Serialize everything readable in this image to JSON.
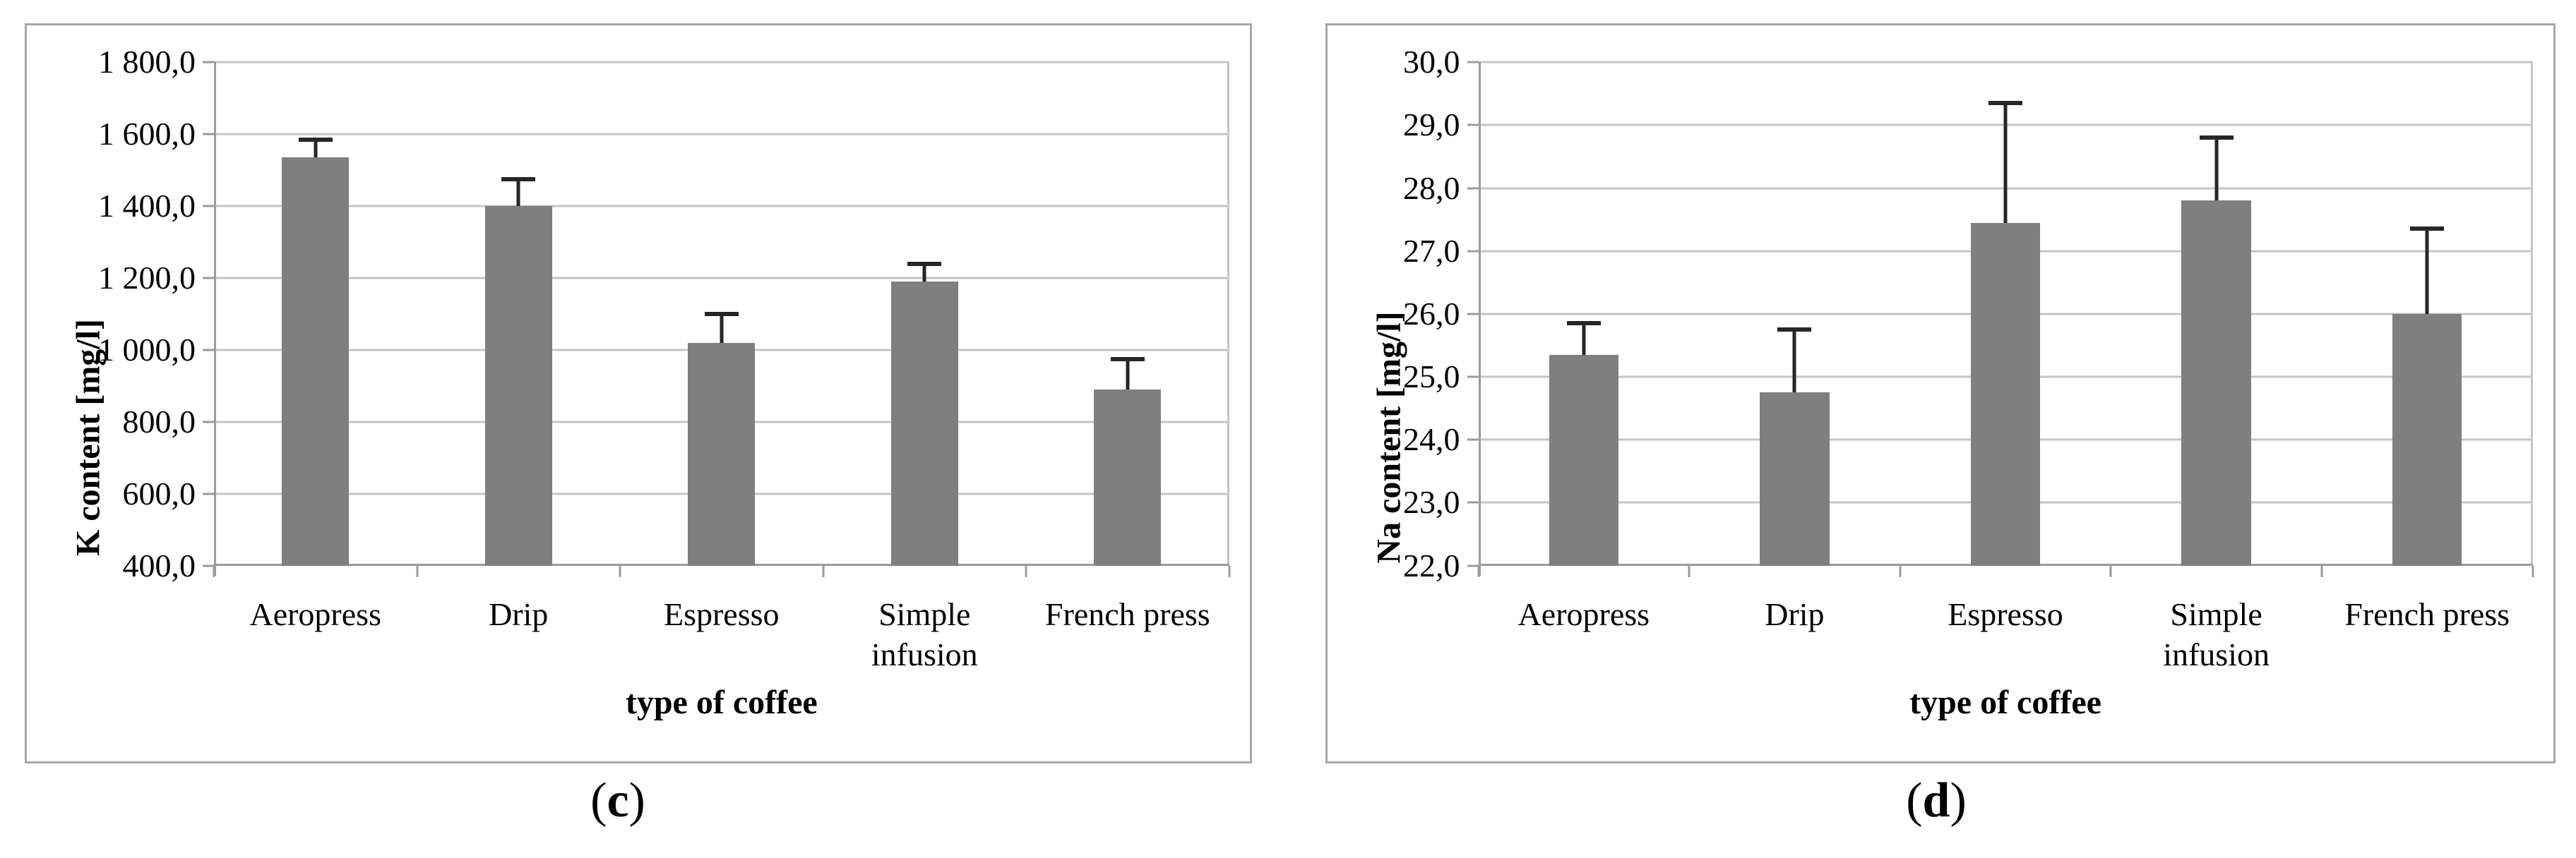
{
  "figure": {
    "captions": [
      {
        "open": "(",
        "letter": "c",
        "close": ")"
      },
      {
        "open": "(",
        "letter": "d",
        "close": ")"
      }
    ]
  },
  "colors": {
    "bar": "#7f7f7f",
    "gridline": "#c5c5c5",
    "axis": "#9b9b9b",
    "error_bar": "#262626",
    "panel_border": "#a6a6a6",
    "text": "#000000"
  },
  "chart_data": [
    {
      "type": "bar",
      "panel": "c",
      "title": "",
      "ylabel": "K content [mg/l]",
      "xlabel": "type of coffee",
      "categories": [
        "Aeropress",
        "Drip",
        "Espresso",
        "Simple\ninfusion",
        "French press"
      ],
      "values": [
        1535,
        1400,
        1020,
        1190,
        890
      ],
      "errors_plus": [
        50,
        75,
        80,
        50,
        85
      ],
      "ylim": [
        400,
        1800
      ],
      "ytick_step": 200,
      "ytick_labels": [
        "400,0",
        "600,0",
        "800,0",
        "1 000,0",
        "1 200,0",
        "1 400,0",
        "1 600,0",
        "1 800,0"
      ],
      "grid": true,
      "legend": "none"
    },
    {
      "type": "bar",
      "panel": "d",
      "title": "",
      "ylabel": "Na content [mg/l]",
      "xlabel": "type of coffee",
      "categories": [
        "Aeropress",
        "Drip",
        "Espresso",
        "Simple\ninfusion",
        "French press"
      ],
      "values": [
        25.35,
        24.75,
        27.45,
        27.8,
        26.0
      ],
      "errors_plus": [
        0.5,
        1.0,
        1.9,
        1.0,
        1.35
      ],
      "ylim": [
        22,
        30
      ],
      "ytick_step": 1,
      "ytick_labels": [
        "22,0",
        "23,0",
        "24,0",
        "25,0",
        "26,0",
        "27,0",
        "28,0",
        "29,0",
        "30,0"
      ],
      "grid": true,
      "legend": "none"
    }
  ]
}
